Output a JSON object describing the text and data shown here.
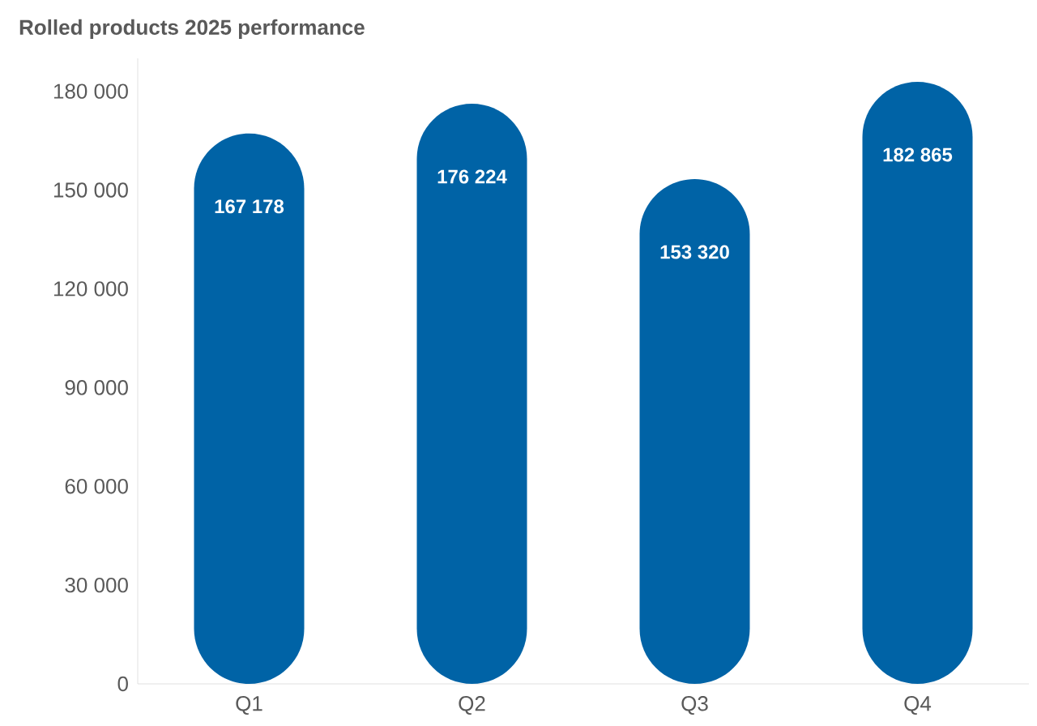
{
  "chart_data": {
    "type": "bar",
    "title": "Rolled products 2025 performance",
    "categories": [
      "Q1",
      "Q2",
      "Q3",
      "Q4"
    ],
    "values": [
      167178,
      176224,
      153320,
      182865
    ],
    "value_labels": [
      "167 178",
      "176 224",
      "153 320",
      "182 865"
    ],
    "color": "#0063a6",
    "ylim": [
      0,
      190000
    ],
    "yticks": [
      {
        "value": 0,
        "label": "0"
      },
      {
        "value": 30000,
        "label": "30 000"
      },
      {
        "value": 60000,
        "label": "60 000"
      },
      {
        "value": 90000,
        "label": "90 000"
      },
      {
        "value": 120000,
        "label": "120 000"
      },
      {
        "value": 150000,
        "label": "150 000"
      },
      {
        "value": 180000,
        "label": "180 000"
      }
    ],
    "grid": false
  }
}
